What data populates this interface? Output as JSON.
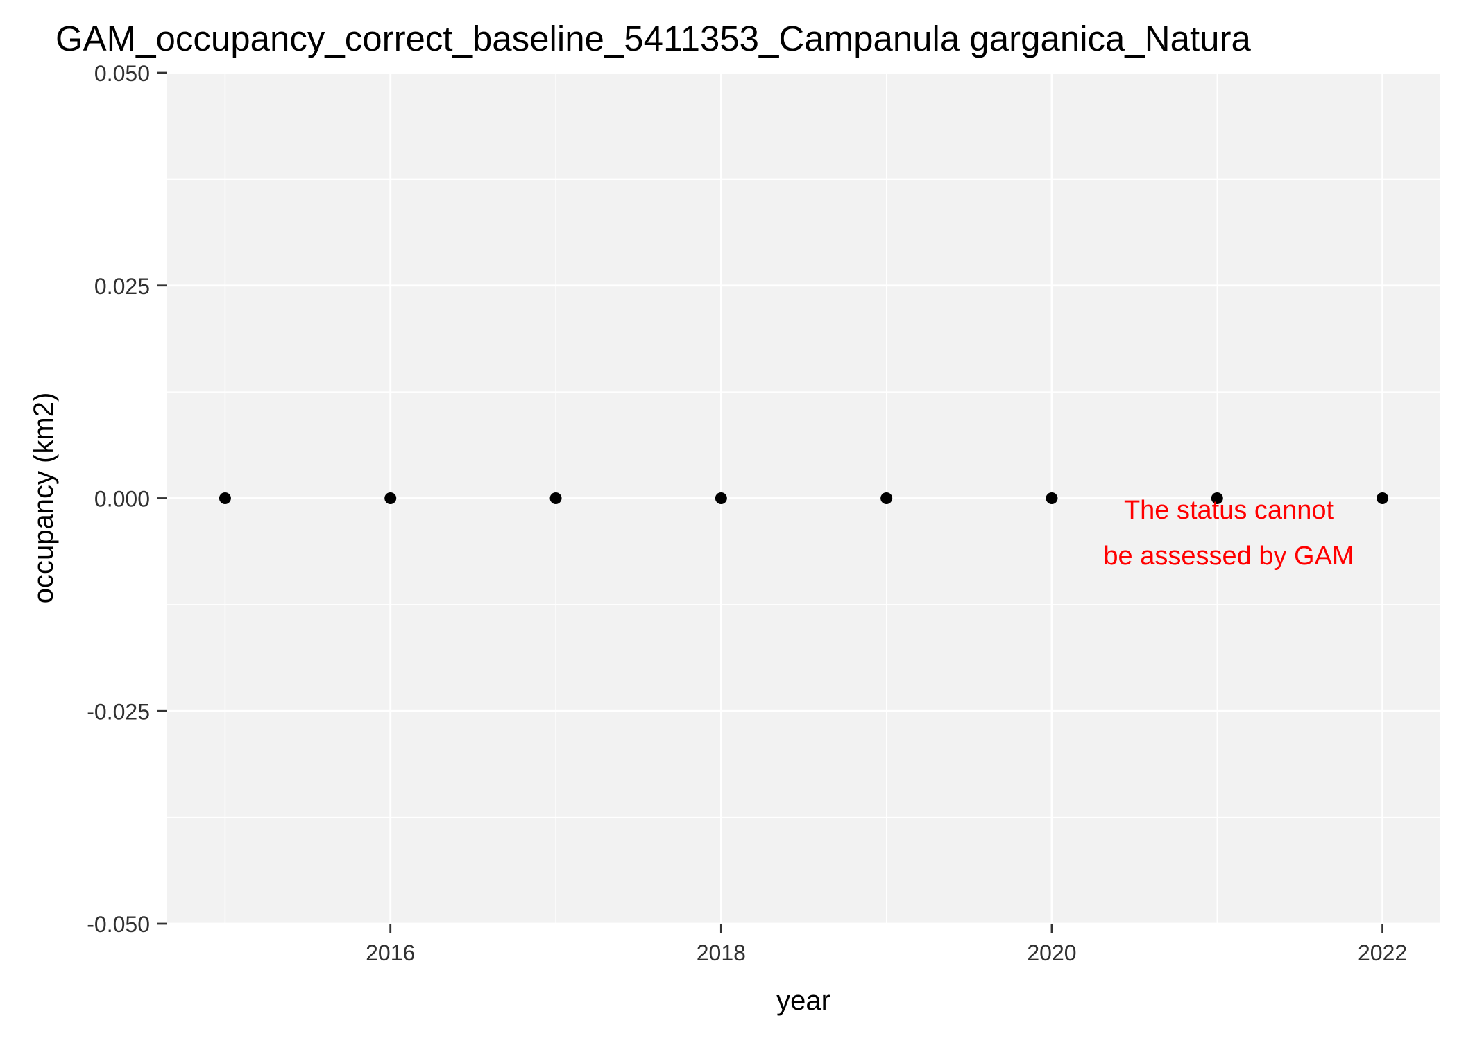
{
  "chart_data": {
    "type": "scatter",
    "title": "GAM_occupancy_correct_baseline_5411353_Campanula garganica_Natura",
    "xlabel": "year",
    "ylabel": "occupancy (km2)",
    "xlim": [
      2014.65,
      2022.35
    ],
    "ylim": [
      -0.05,
      0.05
    ],
    "x_ticks": [
      2016,
      2018,
      2020,
      2022
    ],
    "x_tick_labels": [
      "2016",
      "2018",
      "2020",
      "2022"
    ],
    "x_minor_ticks": [
      2015,
      2017,
      2019,
      2021
    ],
    "y_ticks": [
      -0.05,
      -0.025,
      0,
      0.025,
      0.05
    ],
    "y_tick_labels": [
      "-0.050",
      "-0.025",
      "0.000",
      "0.025",
      "0.050"
    ],
    "y_minor_ticks": [
      -0.0375,
      -0.0125,
      0.0125,
      0.0375
    ],
    "grid": true,
    "legend": "none",
    "series": [
      {
        "x": [
          2015,
          2016,
          2017,
          2018,
          2019,
          2020,
          2021,
          2022
        ],
        "y": [
          0,
          0,
          0,
          0,
          0,
          0,
          0,
          0
        ]
      }
    ],
    "annotation": {
      "lines": [
        "The status cannot",
        "be assessed by GAM"
      ],
      "color": "#ff0000"
    },
    "colors": {
      "panel": "#f2f2f2",
      "grid": "#ffffff",
      "point": "#000000",
      "text": "#000000",
      "tick_label": "#303030"
    }
  }
}
